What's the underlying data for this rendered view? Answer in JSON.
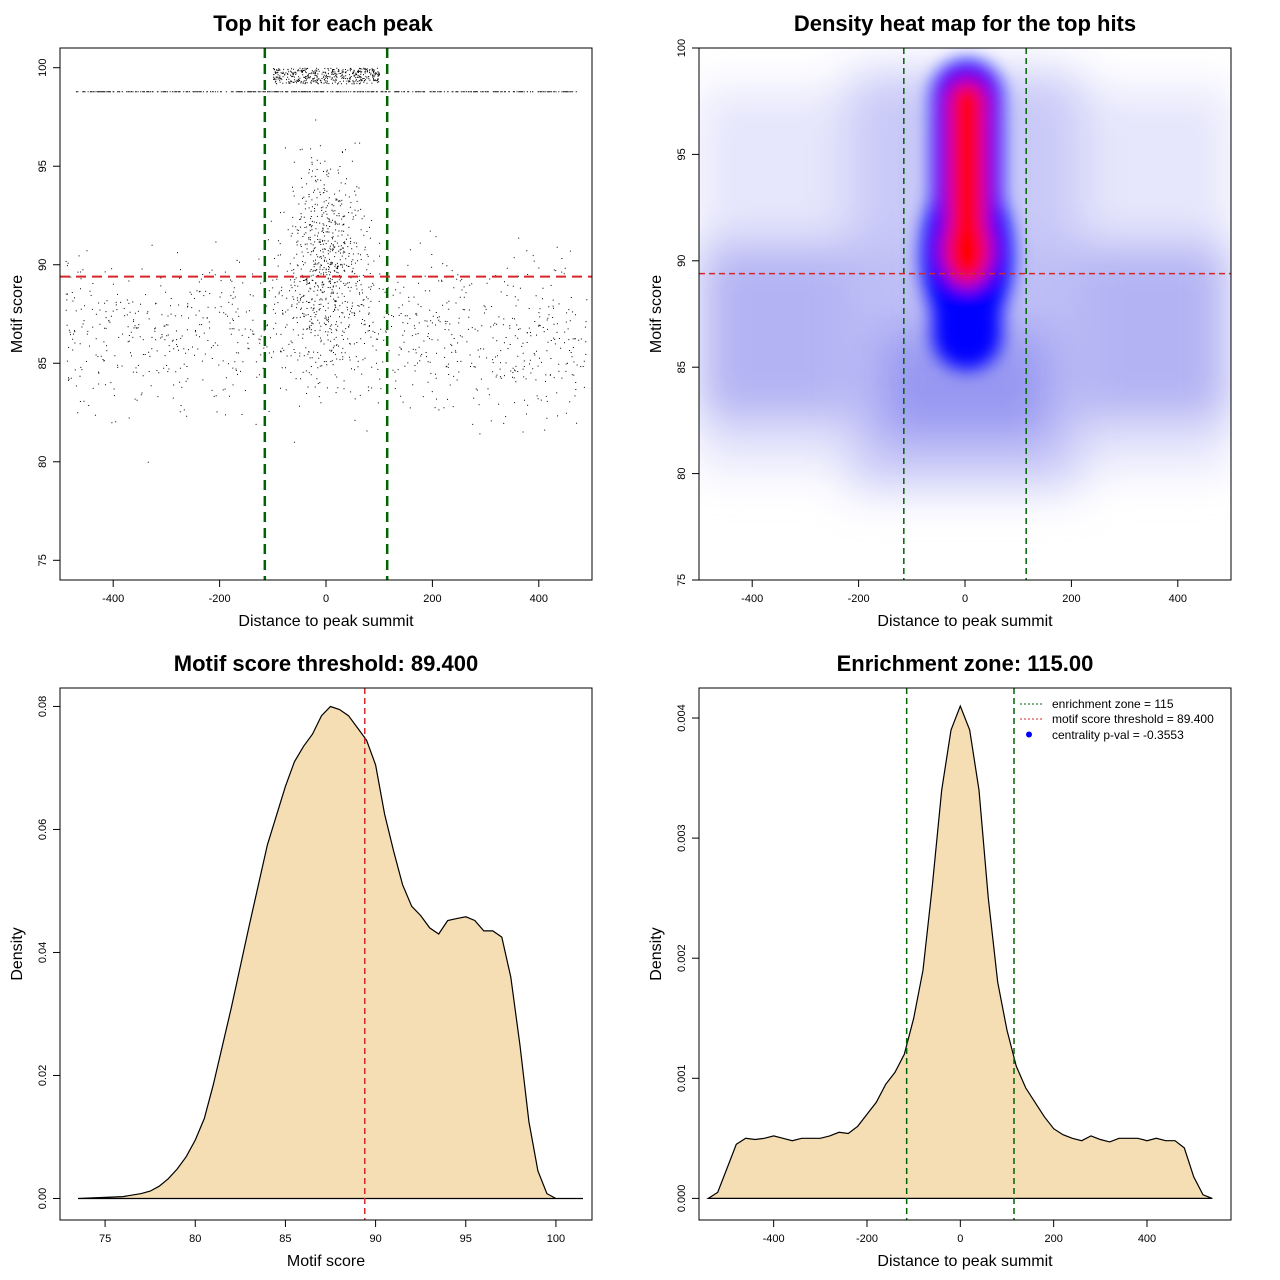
{
  "chart_data": [
    {
      "type": "scatter",
      "title": "Top hit for each peak",
      "xlabel": "Distance to peak summit",
      "ylabel": "Motif score",
      "xlim": [
        -500,
        500
      ],
      "ylim": [
        74,
        101
      ],
      "xticks": [
        -400,
        -200,
        0,
        200,
        400
      ],
      "yticks": [
        75,
        80,
        85,
        90,
        95,
        100
      ],
      "xtick_labels": [
        "-400",
        "-200",
        "0",
        "200",
        "400"
      ],
      "ytick_labels": [
        "75",
        "80",
        "85",
        "90",
        "95",
        "100"
      ],
      "vlines": [
        -115,
        115
      ],
      "hline": 89.4,
      "vline_color": "#006400",
      "hline_color": "#d62728",
      "point_color": "#000000"
    },
    {
      "type": "heatmap",
      "title": "Density heat map for the top hits",
      "xlabel": "Distance to peak summit",
      "ylabel": "Motif score",
      "xlim": [
        -500,
        500
      ],
      "ylim": [
        75,
        100
      ],
      "xticks": [
        -400,
        -200,
        0,
        200,
        400
      ],
      "yticks": [
        75,
        80,
        85,
        90,
        95,
        100
      ],
      "xtick_labels": [
        "-400",
        "-200",
        "0",
        "200",
        "400"
      ],
      "ytick_labels": [
        "75",
        "80",
        "85",
        "90",
        "95",
        "100"
      ],
      "vlines": [
        -115,
        115
      ],
      "hline": 89.4,
      "vline_color": "#006400",
      "hline_color": "#d62728",
      "colors": [
        "#ffffff",
        "#0000ff",
        "#ff0000"
      ]
    },
    {
      "type": "area",
      "title": "Motif score threshold: 89.400",
      "xlabel": "Motif score",
      "ylabel": "Density",
      "xlim": [
        72.5,
        102
      ],
      "ylim": [
        -0.0035,
        0.083
      ],
      "xticks": [
        75,
        80,
        85,
        90,
        95,
        100
      ],
      "yticks": [
        0,
        0.02,
        0.04,
        0.06,
        0.08
      ],
      "xtick_labels": [
        "75",
        "80",
        "85",
        "90",
        "95",
        "100"
      ],
      "ytick_labels": [
        "0.00",
        "0.02",
        "0.04",
        "0.06",
        "0.08"
      ],
      "x": [
        73.5,
        76,
        77,
        77.5,
        78,
        78.5,
        79,
        79.5,
        80,
        80.5,
        81,
        82,
        83,
        84,
        85,
        85.5,
        86,
        86.5,
        87,
        87.5,
        88,
        88.5,
        89,
        89.5,
        90,
        90.5,
        91,
        91.5,
        92,
        92.5,
        93,
        93.5,
        94,
        94.5,
        95,
        95.5,
        96,
        96.5,
        97,
        97.5,
        98,
        98.5,
        99,
        99.5,
        100,
        100.5,
        101,
        101.5
      ],
      "y": [
        0,
        0.0003,
        0.0008,
        0.0012,
        0.002,
        0.0032,
        0.0048,
        0.0068,
        0.0095,
        0.013,
        0.0185,
        0.031,
        0.0445,
        0.0575,
        0.067,
        0.071,
        0.0735,
        0.0755,
        0.0785,
        0.08,
        0.0795,
        0.0785,
        0.0765,
        0.0745,
        0.0705,
        0.0625,
        0.0565,
        0.051,
        0.0475,
        0.046,
        0.044,
        0.043,
        0.0452,
        0.0455,
        0.0458,
        0.0452,
        0.0435,
        0.0435,
        0.0425,
        0.036,
        0.025,
        0.0125,
        0.0045,
        0.0008,
        0,
        0,
        0,
        0
      ],
      "fill": "#f5deb3",
      "vline": 89.4,
      "vline_color": "#d62728"
    },
    {
      "type": "area",
      "title": "Enrichment zone: 115.00",
      "xlabel": "Distance to peak summit",
      "ylabel": "Density",
      "xlim": [
        -560,
        580
      ],
      "ylim": [
        -0.00018,
        0.00425
      ],
      "xticks": [
        -400,
        -200,
        0,
        200,
        400
      ],
      "yticks": [
        0,
        0.001,
        0.002,
        0.003,
        0.004
      ],
      "xtick_labels": [
        "-400",
        "-200",
        "0",
        "200",
        "400"
      ],
      "ytick_labels": [
        "0.000",
        "0.001",
        "0.002",
        "0.003",
        "0.004"
      ],
      "x": [
        -540,
        -520,
        -500,
        -480,
        -460,
        -440,
        -420,
        -400,
        -380,
        -360,
        -340,
        -320,
        -300,
        -280,
        -260,
        -240,
        -220,
        -200,
        -180,
        -160,
        -140,
        -120,
        -100,
        -80,
        -60,
        -40,
        -20,
        0,
        20,
        40,
        60,
        80,
        100,
        120,
        140,
        160,
        180,
        200,
        220,
        240,
        260,
        280,
        300,
        320,
        340,
        360,
        380,
        400,
        420,
        440,
        460,
        480,
        500,
        520,
        540
      ],
      "y": [
        0,
        5e-05,
        0.00025,
        0.00045,
        0.0005,
        0.00049,
        0.0005,
        0.00052,
        0.0005,
        0.00048,
        0.0005,
        0.0005,
        0.0005,
        0.00052,
        0.00055,
        0.00054,
        0.0006,
        0.0007,
        0.0008,
        0.00095,
        0.00105,
        0.0012,
        0.0015,
        0.0019,
        0.0026,
        0.0034,
        0.0039,
        0.0041,
        0.0039,
        0.0034,
        0.0025,
        0.0018,
        0.0014,
        0.0011,
        0.00092,
        0.0008,
        0.00068,
        0.00058,
        0.00053,
        0.0005,
        0.00048,
        0.00052,
        0.00049,
        0.00047,
        0.0005,
        0.0005,
        0.0005,
        0.00048,
        0.0005,
        0.00048,
        0.00048,
        0.00042,
        0.00018,
        3e-05,
        0
      ],
      "fill": "#f5deb3",
      "vlines": [
        -115,
        115
      ],
      "vline_color": "#006400",
      "legend": [
        {
          "label": "enrichment zone = 115",
          "color": "#006400",
          "style": "dotted-line"
        },
        {
          "label": "motif score threshold = 89.400",
          "color": "#d62728",
          "style": "dotted-line"
        },
        {
          "label": "centrality p-val = -0.3553",
          "color": "#0000ff",
          "style": "dot"
        }
      ]
    }
  ]
}
